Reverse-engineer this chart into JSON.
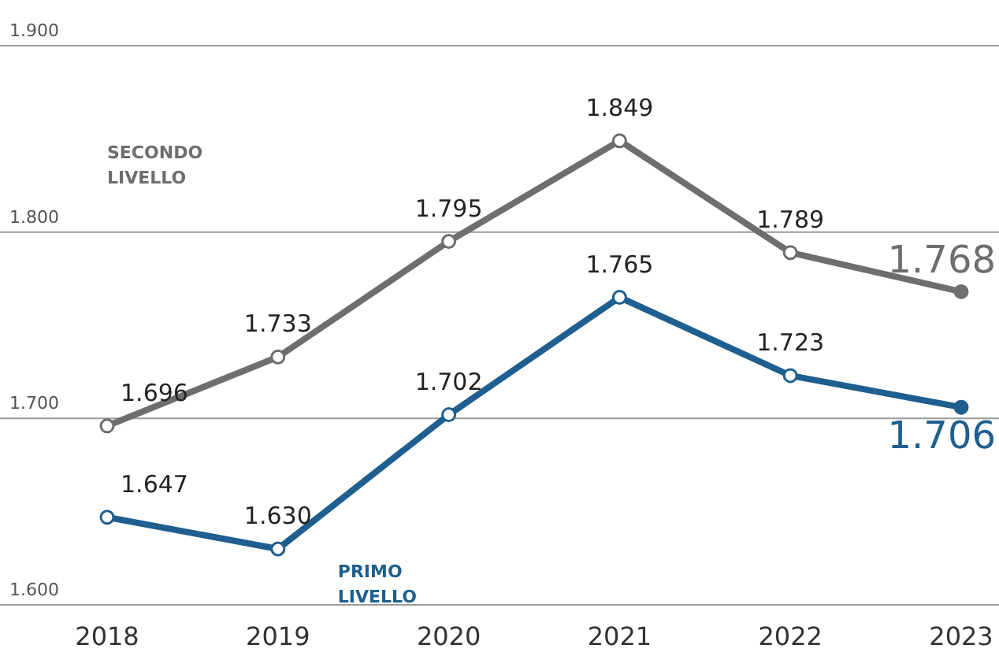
{
  "chart_data": {
    "type": "line",
    "categories": [
      "2018",
      "2019",
      "2020",
      "2021",
      "2022",
      "2023"
    ],
    "series": [
      {
        "name": "SECONDO LIVELLO",
        "color": "#6d6e70",
        "values": [
          1696,
          1733,
          1795,
          1849,
          1789,
          1768
        ],
        "value_labels": [
          "1.696",
          "1.733",
          "1.795",
          "1.849",
          "1.789",
          "1.768"
        ]
      },
      {
        "name": "PRIMO LIVELLO",
        "color": "#1f5f8f",
        "values": [
          1647,
          1630,
          1702,
          1765,
          1723,
          1706
        ],
        "value_labels": [
          "1.647",
          "1.630",
          "1.702",
          "1.765",
          "1.723",
          "1.706"
        ]
      }
    ],
    "ylim": [
      1600,
      1900
    ],
    "yticks": [
      {
        "value": 1600,
        "label": "1.600"
      },
      {
        "value": 1700,
        "label": "1.700"
      },
      {
        "value": 1800,
        "label": "1.800"
      },
      {
        "value": 1900,
        "label": "1.900"
      }
    ],
    "grid": "y",
    "marker": "circle",
    "line_style": "solid"
  }
}
